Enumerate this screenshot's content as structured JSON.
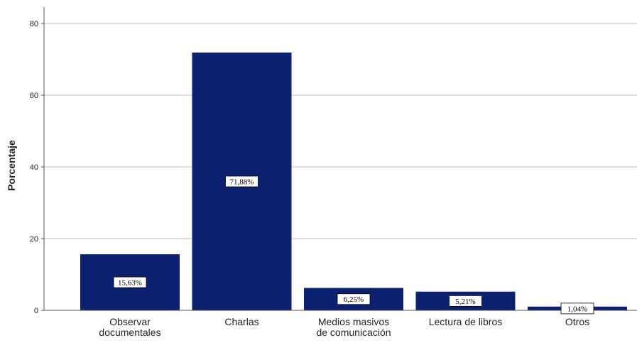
{
  "chart_data": {
    "type": "bar",
    "categories": [
      [
        "Observar",
        "documentales"
      ],
      [
        "Charlas"
      ],
      [
        "Medios masivos",
        "de comunicación"
      ],
      [
        "Lectura de libros"
      ],
      [
        "Otros"
      ]
    ],
    "values": [
      15.63,
      71.88,
      6.25,
      5.21,
      1.04
    ],
    "data_labels": [
      "15,63%",
      "71,88%",
      "6,25%",
      "5,21%",
      "1,04%"
    ],
    "ylabel": "Porcentaje",
    "ylim": [
      0,
      80
    ],
    "yticks": [
      "0",
      "20",
      "40",
      "60",
      "80"
    ],
    "grid": true,
    "colors": {
      "bar": "#0c2170",
      "grid": "#d4d4d4",
      "axis": "#555555"
    }
  }
}
